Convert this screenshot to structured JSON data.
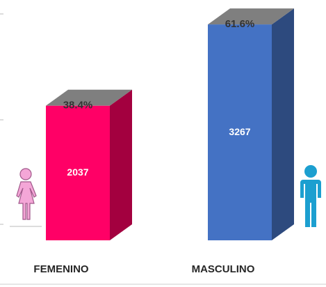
{
  "chart_data": {
    "type": "bar3d",
    "categories": [
      "FEMENINO",
      "MASCULINO"
    ],
    "values": [
      2037,
      3267
    ],
    "percent_labels": [
      "38.4%",
      "61.6%"
    ],
    "colors": [
      "#ff0066",
      "#4472c4"
    ],
    "side_colors": [
      "#a3003f",
      "#2d4a7e"
    ],
    "top_color": "#7f7f7f",
    "ylim": [
      0,
      3500
    ]
  }
}
